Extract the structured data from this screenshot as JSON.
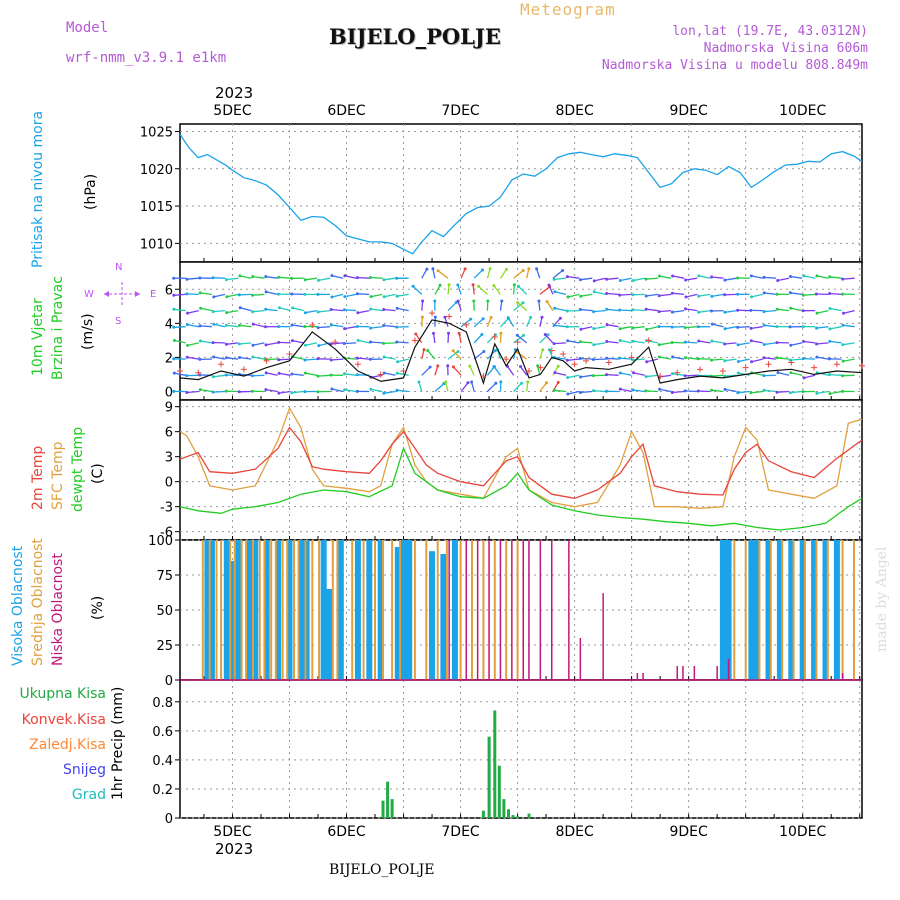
{
  "header": {
    "model_label": "Model",
    "model_name": "wrf-nmm_v3.9.1 e1km",
    "station": "BIJELO_POLJE",
    "chart_kind": "Meteogram",
    "lonlat": "lon,lat (19.7E, 43.0312N)",
    "altitude": "Nadmorska Visina 606m",
    "model_altitude": "Nadmorska Visina u modelu 808.849m",
    "footer_station": "BIJELO_POLJE",
    "credit": "made by Angel",
    "year": "2023"
  },
  "colors": {
    "pressure": "#1aa3e8",
    "temp2m": "#e8453c",
    "sfc": "#e0a040",
    "dewpt": "#22cc22",
    "cloud_high": "#1aa3e8",
    "cloud_mid": "#e0a040",
    "cloud_low": "#c0177a",
    "precip": "#22aa44",
    "wind_arrow": "#bb55ee"
  },
  "chart_data": [
    {
      "type": "line",
      "panel": "pressure",
      "xlabels": [
        "5DEC",
        "6DEC",
        "7DEC",
        "8DEC",
        "9DEC",
        "10DEC"
      ],
      "ylabel_side": "Pritisak na nivou mora",
      "unit": "(hPa)",
      "yticks": [
        "1010",
        "1015",
        "1020",
        "1025"
      ],
      "ylim": [
        1007.5,
        1026
      ],
      "x_range_days": [
        4.54,
        10.52
      ],
      "series": [
        {
          "values_x": [
            4.54,
            4.62,
            4.7,
            4.78,
            4.86,
            4.94,
            5.0,
            5.1,
            5.2,
            5.3,
            5.4,
            5.5,
            5.6,
            5.7,
            5.8,
            5.9,
            6.0,
            6.1,
            6.2,
            6.3,
            6.4,
            6.5,
            6.58,
            6.66,
            6.75,
            6.85,
            6.95,
            7.05,
            7.15,
            7.25,
            7.35,
            7.45,
            7.55,
            7.65,
            7.75,
            7.85,
            7.95,
            8.05,
            8.15,
            8.25,
            8.35,
            8.45,
            8.55,
            8.65,
            8.75,
            8.85,
            8.95,
            9.05,
            9.15,
            9.25,
            9.35,
            9.45,
            9.55,
            9.65,
            9.75,
            9.85,
            9.95,
            10.05,
            10.15,
            10.25,
            10.35,
            10.45,
            10.52
          ],
          "values": [
            1024.6,
            1022.8,
            1021.5,
            1021.9,
            1021.2,
            1020.5,
            1019.8,
            1018.8,
            1018.4,
            1017.8,
            1016.5,
            1014.8,
            1013.1,
            1013.6,
            1013.5,
            1012.4,
            1011.0,
            1010.6,
            1010.2,
            1010.2,
            1010.0,
            1009.2,
            1008.6,
            1010.2,
            1011.7,
            1010.9,
            1012.5,
            1014.0,
            1014.8,
            1015.0,
            1016.2,
            1018.5,
            1019.3,
            1019.0,
            1020.0,
            1021.5,
            1022.0,
            1022.2,
            1021.9,
            1021.6,
            1022.0,
            1021.8,
            1021.5,
            1019.5,
            1017.5,
            1018.0,
            1019.5,
            1020.0,
            1019.8,
            1019.2,
            1020.3,
            1019.5,
            1017.5,
            1018.5,
            1019.6,
            1020.5,
            1020.6,
            1021.0,
            1020.9,
            1022.0,
            1022.3,
            1021.7,
            1021.0
          ]
        }
      ]
    },
    {
      "type": "line",
      "panel": "wind",
      "ylabel_side": [
        "10m Vjetar",
        "Brzina i Pravac"
      ],
      "unit": "(m/s)",
      "compass": {
        "north": "N",
        "east": "E",
        "west": "W",
        "south": "S"
      },
      "yticks": [
        "0",
        "2",
        "4",
        "6"
      ],
      "ylim": [
        -0.5,
        7.6
      ],
      "series": [
        {
          "name": "wind speed",
          "values_x": [
            4.54,
            4.7,
            4.9,
            5.1,
            5.3,
            5.5,
            5.7,
            5.9,
            6.1,
            6.3,
            6.5,
            6.6,
            6.75,
            6.9,
            7.05,
            7.2,
            7.3,
            7.4,
            7.5,
            7.6,
            7.7,
            7.8,
            7.9,
            8.0,
            8.1,
            8.3,
            8.5,
            8.65,
            8.75,
            8.9,
            9.1,
            9.3,
            9.5,
            9.7,
            9.9,
            10.1,
            10.3,
            10.52
          ],
          "values": [
            0.8,
            0.7,
            1.2,
            0.9,
            1.4,
            1.8,
            3.5,
            2.5,
            1.2,
            0.6,
            0.8,
            2.6,
            4.2,
            4.0,
            3.5,
            0.5,
            2.8,
            1.5,
            2.5,
            0.8,
            1.0,
            2.0,
            1.8,
            1.2,
            1.4,
            1.3,
            1.6,
            2.6,
            0.5,
            0.7,
            0.9,
            0.8,
            1.0,
            1.2,
            1.3,
            1.0,
            1.2,
            1.1
          ]
        }
      ]
    },
    {
      "type": "line",
      "panel": "temperature",
      "ylabel_side": [
        "2m Temp",
        "SFC Temp",
        "dewpt Temp"
      ],
      "unit": "(C)",
      "yticks": [
        "-6",
        "-3",
        "0",
        "3",
        "6",
        "9"
      ],
      "ylim": [
        -7,
        9.8
      ],
      "series": [
        {
          "name": "2m Temp",
          "values_x": [
            4.54,
            4.7,
            4.8,
            5.0,
            5.2,
            5.4,
            5.5,
            5.6,
            5.7,
            5.8,
            6.0,
            6.2,
            6.3,
            6.4,
            6.5,
            6.6,
            6.7,
            6.8,
            7.0,
            7.2,
            7.4,
            7.5,
            7.6,
            7.8,
            8.0,
            8.2,
            8.4,
            8.5,
            8.6,
            8.7,
            8.9,
            9.1,
            9.3,
            9.4,
            9.5,
            9.6,
            9.7,
            9.9,
            10.1,
            10.3,
            10.52
          ],
          "values": [
            2.7,
            3.5,
            1.2,
            1.0,
            1.5,
            4.0,
            6.5,
            4.8,
            1.8,
            1.5,
            1.2,
            1.0,
            2.5,
            4.5,
            6.0,
            4.0,
            2.0,
            1.0,
            0.0,
            -0.5,
            2.5,
            3.0,
            0.5,
            -1.5,
            -2.0,
            -1.0,
            1.0,
            3.0,
            4.5,
            -0.5,
            -1.2,
            -1.5,
            -1.6,
            1.5,
            3.5,
            4.5,
            2.5,
            1.2,
            0.5,
            2.8,
            5.0
          ]
        },
        {
          "name": "SFC Temp",
          "values_x": [
            4.54,
            4.6,
            4.7,
            4.8,
            5.0,
            5.2,
            5.4,
            5.5,
            5.6,
            5.7,
            5.8,
            6.0,
            6.2,
            6.3,
            6.4,
            6.5,
            6.6,
            6.7,
            6.8,
            7.0,
            7.2,
            7.4,
            7.5,
            7.6,
            7.8,
            8.0,
            8.2,
            8.4,
            8.5,
            8.6,
            8.7,
            8.9,
            9.1,
            9.3,
            9.4,
            9.5,
            9.6,
            9.7,
            9.9,
            10.1,
            10.3,
            10.4,
            10.52
          ],
          "values": [
            6.0,
            5.5,
            3.0,
            -0.5,
            -1.0,
            -0.5,
            5.0,
            8.8,
            6.5,
            1.5,
            -0.5,
            -0.8,
            -1.2,
            -0.5,
            4.5,
            6.5,
            2.0,
            0.0,
            -1.0,
            -1.5,
            -2.0,
            3.0,
            4.0,
            -1.0,
            -2.5,
            -3.0,
            -2.5,
            2.0,
            6.0,
            3.5,
            -3.0,
            -3.0,
            -3.2,
            -3.0,
            3.0,
            6.5,
            5.0,
            -1.0,
            -1.5,
            -2.0,
            -0.5,
            7.0,
            7.5
          ]
        },
        {
          "name": "dewpt Temp",
          "values_x": [
            4.54,
            4.7,
            4.9,
            5.0,
            5.2,
            5.4,
            5.6,
            5.8,
            6.0,
            6.2,
            6.4,
            6.5,
            6.6,
            6.8,
            7.0,
            7.2,
            7.4,
            7.5,
            7.6,
            7.8,
            8.0,
            8.2,
            8.4,
            8.6,
            8.8,
            9.0,
            9.2,
            9.4,
            9.6,
            9.8,
            10.0,
            10.2,
            10.4,
            10.52
          ],
          "values": [
            -3.0,
            -3.5,
            -3.8,
            -3.3,
            -3.0,
            -2.5,
            -1.5,
            -1.0,
            -1.2,
            -1.8,
            -0.5,
            4.0,
            1.0,
            -1.0,
            -1.8,
            -2.0,
            -0.5,
            1.0,
            -1.0,
            -2.8,
            -3.5,
            -4.0,
            -4.3,
            -4.5,
            -4.8,
            -5.0,
            -5.3,
            -5.0,
            -5.5,
            -5.8,
            -5.5,
            -5.0,
            -3.0,
            -2.0
          ]
        }
      ]
    },
    {
      "type": "bar",
      "panel": "clouds",
      "ylabel_side": [
        "Visoka Oblacnost",
        "Srednja Oblacnost",
        "Niska Oblacnost"
      ],
      "unit": "(%)",
      "yticks": [
        "0",
        "25",
        "50",
        "75",
        "100"
      ],
      "ylim": [
        0,
        100
      ],
      "series": [
        {
          "name": "Visoka Oblacnost",
          "x": [
            4.78,
            4.82,
            4.95,
            5.0,
            5.05,
            5.15,
            5.2,
            5.3,
            5.4,
            5.5,
            5.6,
            5.65,
            5.8,
            5.85,
            5.95,
            6.1,
            6.2,
            6.3,
            6.45,
            6.5,
            6.55,
            6.75,
            6.85,
            6.95,
            9.3,
            9.35,
            9.55,
            9.6,
            9.7,
            9.8,
            9.9,
            10.0,
            10.1,
            10.2,
            10.3
          ],
          "values": [
            100,
            100,
            100,
            85,
            100,
            100,
            100,
            100,
            100,
            100,
            100,
            100,
            100,
            65,
            100,
            100,
            100,
            100,
            95,
            100,
            100,
            92,
            90,
            100,
            100,
            100,
            100,
            100,
            100,
            100,
            100,
            100,
            100,
            100,
            100
          ]
        },
        {
          "name": "Srednja Oblacnost",
          "x": [
            4.74,
            4.8,
            4.86,
            4.9,
            4.98,
            5.02,
            5.08,
            5.12,
            5.18,
            5.24,
            5.28,
            5.34,
            5.38,
            5.44,
            5.48,
            5.54,
            5.58,
            5.64,
            5.7,
            5.76,
            5.88,
            5.92,
            6.05,
            6.15,
            6.25,
            6.32,
            6.4,
            6.47,
            6.6,
            6.7,
            6.8,
            6.88,
            7.0,
            7.1,
            7.2,
            7.3,
            7.4,
            7.5,
            9.4,
            9.5,
            9.62,
            9.72,
            9.82,
            9.92,
            10.02,
            10.12,
            10.22,
            10.35,
            10.45
          ],
          "values": [
            100,
            100,
            100,
            100,
            100,
            100,
            100,
            100,
            100,
            100,
            100,
            100,
            100,
            100,
            100,
            100,
            100,
            100,
            100,
            100,
            100,
            100,
            100,
            100,
            100,
            100,
            100,
            100,
            100,
            100,
            100,
            100,
            100,
            100,
            100,
            100,
            100,
            100,
            100,
            100,
            100,
            100,
            100,
            100,
            100,
            100,
            100,
            100,
            100
          ]
        },
        {
          "name": "Niska Oblacnost",
          "x": [
            6.9,
            7.05,
            7.15,
            7.25,
            7.35,
            7.45,
            7.55,
            7.6,
            7.7,
            7.8,
            7.95,
            8.05,
            8.25,
            8.55,
            8.6,
            8.9,
            8.95,
            9.05,
            9.25,
            9.35,
            10.35
          ],
          "values": [
            100,
            100,
            100,
            100,
            100,
            100,
            100,
            100,
            100,
            100,
            100,
            30,
            62,
            5,
            5,
            10,
            10,
            10,
            10,
            15,
            5
          ]
        }
      ]
    },
    {
      "type": "bar",
      "panel": "precipitation",
      "ylabel_side": "1hr Precip (mm)",
      "legend": [
        "Ukupna Kisa",
        "Konvek.Kisa",
        "Zaledj.Kisa",
        "Snijeg",
        "Grad"
      ],
      "legend_colors": [
        "#22aa44",
        "#e8453c",
        "#ff8833",
        "#4444ee",
        "#22bbbb"
      ],
      "yticks": [
        "0",
        "0.2",
        "0.4",
        "0.6",
        "0.8"
      ],
      "ylim": [
        0,
        0.95
      ],
      "series": [
        {
          "name": "Ukupna Kisa",
          "x": [
            6.32,
            6.36,
            6.4,
            7.2,
            7.25,
            7.3,
            7.34,
            7.38,
            7.42,
            7.46,
            7.5,
            7.6
          ],
          "values": [
            0.12,
            0.25,
            0.13,
            0.05,
            0.56,
            0.74,
            0.36,
            0.13,
            0.06,
            0.02,
            0.01,
            0.03
          ]
        }
      ]
    }
  ]
}
